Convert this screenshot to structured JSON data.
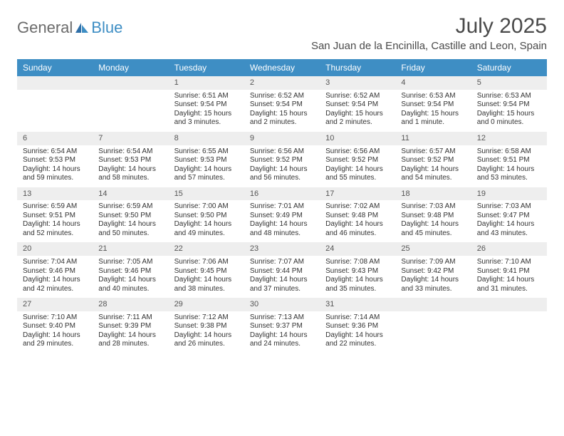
{
  "brand": {
    "part1": "General",
    "part2": "Blue"
  },
  "title": "July 2025",
  "location": "San Juan de la Encinilla, Castille and Leon, Spain",
  "colors": {
    "header_bg": "#3e8ec4",
    "header_fg": "#ffffff",
    "daynum_bg": "#eeeeee",
    "text": "#333333"
  },
  "day_names": [
    "Sunday",
    "Monday",
    "Tuesday",
    "Wednesday",
    "Thursday",
    "Friday",
    "Saturday"
  ],
  "weeks": [
    [
      null,
      null,
      {
        "n": "1",
        "sr": "Sunrise: 6:51 AM",
        "ss": "Sunset: 9:54 PM",
        "dl": "Daylight: 15 hours and 3 minutes."
      },
      {
        "n": "2",
        "sr": "Sunrise: 6:52 AM",
        "ss": "Sunset: 9:54 PM",
        "dl": "Daylight: 15 hours and 2 minutes."
      },
      {
        "n": "3",
        "sr": "Sunrise: 6:52 AM",
        "ss": "Sunset: 9:54 PM",
        "dl": "Daylight: 15 hours and 2 minutes."
      },
      {
        "n": "4",
        "sr": "Sunrise: 6:53 AM",
        "ss": "Sunset: 9:54 PM",
        "dl": "Daylight: 15 hours and 1 minute."
      },
      {
        "n": "5",
        "sr": "Sunrise: 6:53 AM",
        "ss": "Sunset: 9:54 PM",
        "dl": "Daylight: 15 hours and 0 minutes."
      }
    ],
    [
      {
        "n": "6",
        "sr": "Sunrise: 6:54 AM",
        "ss": "Sunset: 9:53 PM",
        "dl": "Daylight: 14 hours and 59 minutes."
      },
      {
        "n": "7",
        "sr": "Sunrise: 6:54 AM",
        "ss": "Sunset: 9:53 PM",
        "dl": "Daylight: 14 hours and 58 minutes."
      },
      {
        "n": "8",
        "sr": "Sunrise: 6:55 AM",
        "ss": "Sunset: 9:53 PM",
        "dl": "Daylight: 14 hours and 57 minutes."
      },
      {
        "n": "9",
        "sr": "Sunrise: 6:56 AM",
        "ss": "Sunset: 9:52 PM",
        "dl": "Daylight: 14 hours and 56 minutes."
      },
      {
        "n": "10",
        "sr": "Sunrise: 6:56 AM",
        "ss": "Sunset: 9:52 PM",
        "dl": "Daylight: 14 hours and 55 minutes."
      },
      {
        "n": "11",
        "sr": "Sunrise: 6:57 AM",
        "ss": "Sunset: 9:52 PM",
        "dl": "Daylight: 14 hours and 54 minutes."
      },
      {
        "n": "12",
        "sr": "Sunrise: 6:58 AM",
        "ss": "Sunset: 9:51 PM",
        "dl": "Daylight: 14 hours and 53 minutes."
      }
    ],
    [
      {
        "n": "13",
        "sr": "Sunrise: 6:59 AM",
        "ss": "Sunset: 9:51 PM",
        "dl": "Daylight: 14 hours and 52 minutes."
      },
      {
        "n": "14",
        "sr": "Sunrise: 6:59 AM",
        "ss": "Sunset: 9:50 PM",
        "dl": "Daylight: 14 hours and 50 minutes."
      },
      {
        "n": "15",
        "sr": "Sunrise: 7:00 AM",
        "ss": "Sunset: 9:50 PM",
        "dl": "Daylight: 14 hours and 49 minutes."
      },
      {
        "n": "16",
        "sr": "Sunrise: 7:01 AM",
        "ss": "Sunset: 9:49 PM",
        "dl": "Daylight: 14 hours and 48 minutes."
      },
      {
        "n": "17",
        "sr": "Sunrise: 7:02 AM",
        "ss": "Sunset: 9:48 PM",
        "dl": "Daylight: 14 hours and 46 minutes."
      },
      {
        "n": "18",
        "sr": "Sunrise: 7:03 AM",
        "ss": "Sunset: 9:48 PM",
        "dl": "Daylight: 14 hours and 45 minutes."
      },
      {
        "n": "19",
        "sr": "Sunrise: 7:03 AM",
        "ss": "Sunset: 9:47 PM",
        "dl": "Daylight: 14 hours and 43 minutes."
      }
    ],
    [
      {
        "n": "20",
        "sr": "Sunrise: 7:04 AM",
        "ss": "Sunset: 9:46 PM",
        "dl": "Daylight: 14 hours and 42 minutes."
      },
      {
        "n": "21",
        "sr": "Sunrise: 7:05 AM",
        "ss": "Sunset: 9:46 PM",
        "dl": "Daylight: 14 hours and 40 minutes."
      },
      {
        "n": "22",
        "sr": "Sunrise: 7:06 AM",
        "ss": "Sunset: 9:45 PM",
        "dl": "Daylight: 14 hours and 38 minutes."
      },
      {
        "n": "23",
        "sr": "Sunrise: 7:07 AM",
        "ss": "Sunset: 9:44 PM",
        "dl": "Daylight: 14 hours and 37 minutes."
      },
      {
        "n": "24",
        "sr": "Sunrise: 7:08 AM",
        "ss": "Sunset: 9:43 PM",
        "dl": "Daylight: 14 hours and 35 minutes."
      },
      {
        "n": "25",
        "sr": "Sunrise: 7:09 AM",
        "ss": "Sunset: 9:42 PM",
        "dl": "Daylight: 14 hours and 33 minutes."
      },
      {
        "n": "26",
        "sr": "Sunrise: 7:10 AM",
        "ss": "Sunset: 9:41 PM",
        "dl": "Daylight: 14 hours and 31 minutes."
      }
    ],
    [
      {
        "n": "27",
        "sr": "Sunrise: 7:10 AM",
        "ss": "Sunset: 9:40 PM",
        "dl": "Daylight: 14 hours and 29 minutes."
      },
      {
        "n": "28",
        "sr": "Sunrise: 7:11 AM",
        "ss": "Sunset: 9:39 PM",
        "dl": "Daylight: 14 hours and 28 minutes."
      },
      {
        "n": "29",
        "sr": "Sunrise: 7:12 AM",
        "ss": "Sunset: 9:38 PM",
        "dl": "Daylight: 14 hours and 26 minutes."
      },
      {
        "n": "30",
        "sr": "Sunrise: 7:13 AM",
        "ss": "Sunset: 9:37 PM",
        "dl": "Daylight: 14 hours and 24 minutes."
      },
      {
        "n": "31",
        "sr": "Sunrise: 7:14 AM",
        "ss": "Sunset: 9:36 PM",
        "dl": "Daylight: 14 hours and 22 minutes."
      },
      null,
      null
    ]
  ]
}
